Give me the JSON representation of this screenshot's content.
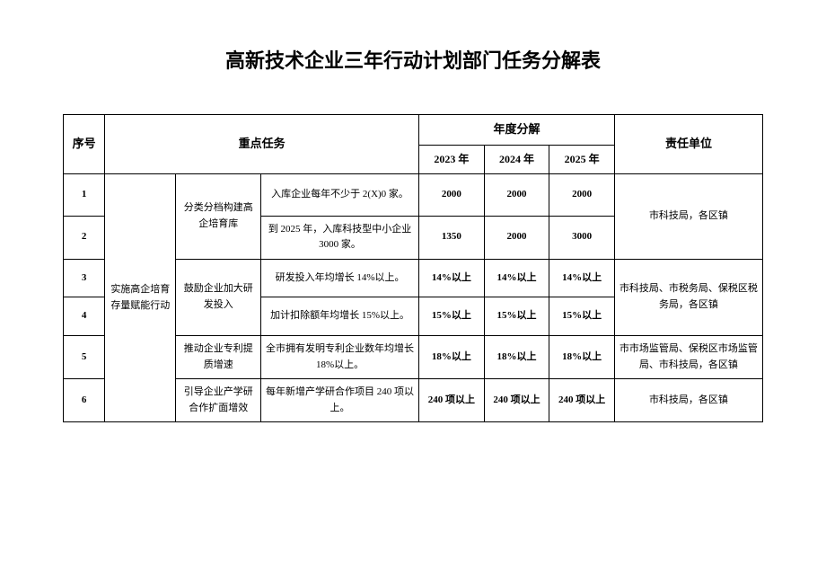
{
  "title": "高新技术企业三年行动计划部门任务分解表",
  "headers": {
    "seq": "序号",
    "key_task": "重点任务",
    "annual": "年度分解",
    "y2023": "2023 年",
    "y2024": "2024 年",
    "y2025": "2025 年",
    "resp": "责任单位"
  },
  "category": "实施高企培育存量赋能行动",
  "sub": {
    "s1": "分类分档构建高企培育库",
    "s2": "鼓励企业加大研发投入",
    "s3": "推动企业专利提质增速",
    "s4": "引导企业产学研合作扩面增效"
  },
  "rows": {
    "r1": {
      "seq": "1",
      "task": "入库企业每年不少于 2(X)0 家。",
      "y2023": "2000",
      "y2024": "2000",
      "y2025": "2000"
    },
    "r2": {
      "seq": "2",
      "task": "到 2025 年，入库科技型中小企业 3000 家。",
      "y2023": "1350",
      "y2024": "2000",
      "y2025": "3000"
    },
    "r3": {
      "seq": "3",
      "task": "研发投入年均增长 14%以上。",
      "y2023": "14%以上",
      "y2024": "14%以上",
      "y2025": "14%以上"
    },
    "r4": {
      "seq": "4",
      "task": "加计扣除额年均增长 15%以上。",
      "y2023": "15%以上",
      "y2024": "15%以上",
      "y2025": "15%以上"
    },
    "r5": {
      "seq": "5",
      "task": "全市拥有发明专利企业数年均增长 18%以上。",
      "y2023": "18%以上",
      "y2024": "18%以上",
      "y2025": "18%以上"
    },
    "r6": {
      "seq": "6",
      "task": "每年新增产学研合作项目 240 项以上。",
      "y2023": "240 项以上",
      "y2024": "240 项以上",
      "y2025": "240 项以上"
    }
  },
  "resp": {
    "g1": "市科技局，各区镇",
    "g2": "市科技局、市税务局、保税区税务局，各区镇",
    "g3": "市市场监管局、保税区市场监管局、市科技局，各区镇",
    "g4": "市科技局，各区镇"
  }
}
